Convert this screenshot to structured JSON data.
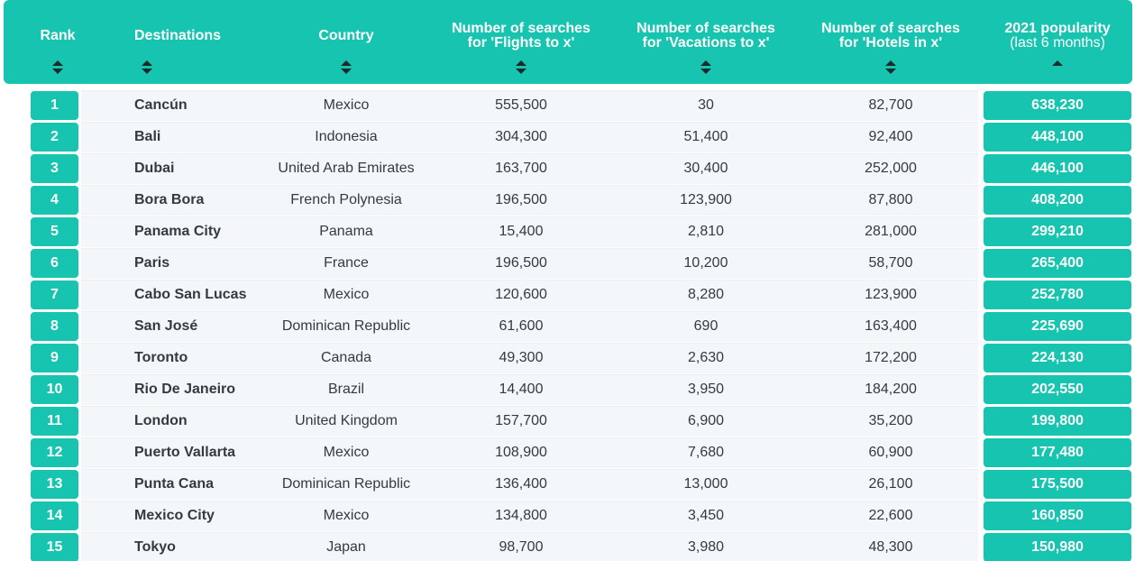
{
  "colors": {
    "accent": "#17c4b0",
    "row_background": "#f4f7fa",
    "text": "#333a40"
  },
  "header": {
    "rank": "Rank",
    "destinations": "Destinations",
    "country": "Country",
    "flights_line1": "Number of searches",
    "flights_line2": "for 'Flights to x'",
    "vacations_line1": "Number of searches",
    "vacations_line2": "for 'Vacations to x'",
    "hotels_line1": "Number of searches",
    "hotels_line2": "for 'Hotels in x'",
    "popularity_line1": "2021 popularity",
    "popularity_line2": "(last 6 months)",
    "sort_icons": [
      "sort-both-icon",
      "sort-both-icon",
      "sort-both-icon",
      "sort-both-icon",
      "sort-both-icon",
      "sort-both-icon",
      "sort-asc-icon"
    ]
  },
  "rows": [
    {
      "rank": "1",
      "destination": "Cancún",
      "country": "Mexico",
      "flights": "555,500",
      "vacations": "30",
      "hotels": "82,700",
      "popularity": "638,230"
    },
    {
      "rank": "2",
      "destination": "Bali",
      "country": "Indonesia",
      "flights": "304,300",
      "vacations": "51,400",
      "hotels": "92,400",
      "popularity": "448,100"
    },
    {
      "rank": "3",
      "destination": "Dubai",
      "country": "United Arab Emirates",
      "flights": "163,700",
      "vacations": "30,400",
      "hotels": "252,000",
      "popularity": "446,100"
    },
    {
      "rank": "4",
      "destination": "Bora Bora",
      "country": "French Polynesia",
      "flights": "196,500",
      "vacations": "123,900",
      "hotels": "87,800",
      "popularity": "408,200"
    },
    {
      "rank": "5",
      "destination": "Panama City",
      "country": "Panama",
      "flights": "15,400",
      "vacations": "2,810",
      "hotels": "281,000",
      "popularity": "299,210"
    },
    {
      "rank": "6",
      "destination": "Paris",
      "country": "France",
      "flights": "196,500",
      "vacations": "10,200",
      "hotels": "58,700",
      "popularity": "265,400"
    },
    {
      "rank": "7",
      "destination": "Cabo San Lucas",
      "country": "Mexico",
      "flights": "120,600",
      "vacations": "8,280",
      "hotels": "123,900",
      "popularity": "252,780"
    },
    {
      "rank": "8",
      "destination": "San José",
      "country": "Dominican Republic",
      "flights": "61,600",
      "vacations": "690",
      "hotels": "163,400",
      "popularity": "225,690"
    },
    {
      "rank": "9",
      "destination": "Toronto",
      "country": "Canada",
      "flights": "49,300",
      "vacations": "2,630",
      "hotels": "172,200",
      "popularity": "224,130"
    },
    {
      "rank": "10",
      "destination": "Rio De Janeiro",
      "country": "Brazil",
      "flights": "14,400",
      "vacations": "3,950",
      "hotels": "184,200",
      "popularity": "202,550"
    },
    {
      "rank": "11",
      "destination": "London",
      "country": "United Kingdom",
      "flights": "157,700",
      "vacations": "6,900",
      "hotels": "35,200",
      "popularity": "199,800"
    },
    {
      "rank": "12",
      "destination": "Puerto Vallarta",
      "country": "Mexico",
      "flights": "108,900",
      "vacations": "7,680",
      "hotels": "60,900",
      "popularity": "177,480"
    },
    {
      "rank": "13",
      "destination": "Punta Cana",
      "country": "Dominican Republic",
      "flights": "136,400",
      "vacations": "13,000",
      "hotels": "26,100",
      "popularity": "175,500"
    },
    {
      "rank": "14",
      "destination": "Mexico City",
      "country": "Mexico",
      "flights": "134,800",
      "vacations": "3,450",
      "hotels": "22,600",
      "popularity": "160,850"
    },
    {
      "rank": "15",
      "destination": "Tokyo",
      "country": "Japan",
      "flights": "98,700",
      "vacations": "3,980",
      "hotels": "48,300",
      "popularity": "150,980"
    }
  ]
}
